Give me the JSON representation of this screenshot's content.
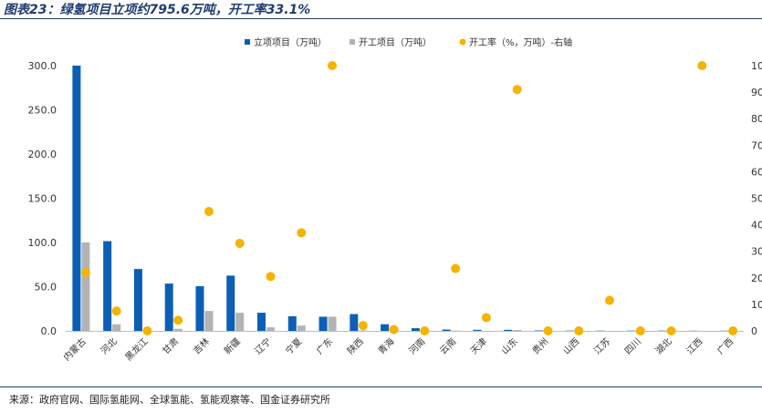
{
  "title": "图表23：绿氢项目立项约795.6万吨，开工率33.1%",
  "source": "来源：政府官网、国际氢能网、全球氢能、氢能观察等、国金证券研究所",
  "colors": {
    "approved": "#0b5fb5",
    "started": "#b3b3b3",
    "rate": "#f4b400"
  },
  "chart_data": {
    "type": "bar",
    "categories": [
      "内蒙古",
      "河北",
      "黑龙江",
      "甘肃",
      "吉林",
      "新疆",
      "辽宁",
      "宁夏",
      "广东",
      "陕西",
      "青海",
      "河南",
      "云南",
      "天津",
      "山东",
      "贵州",
      "山西",
      "江苏",
      "四川",
      "湖北",
      "江西",
      "广西"
    ],
    "series": [
      {
        "name": "立项项目（万吨）",
        "type": "bar",
        "axis": "left",
        "values": [
          300.0,
          101.5,
          70.0,
          53.5,
          50.5,
          62.5,
          20.5,
          16.5,
          16.0,
          19.0,
          7.5,
          3.0,
          1.5,
          1.2,
          1.2,
          0.5,
          0.3,
          0.3,
          0.3,
          0.3,
          0.2,
          0.2
        ]
      },
      {
        "name": "开工项目（万吨）",
        "type": "bar",
        "axis": "left",
        "values": [
          100.0,
          7.5,
          0.0,
          2.3,
          22.5,
          20.5,
          4.0,
          6.0,
          16.0,
          0.5,
          0.3,
          0.0,
          0.3,
          0.0,
          1.0,
          0.0,
          0.0,
          0.0,
          0.0,
          0.0,
          0.0,
          0.0
        ]
      },
      {
        "name": "开工率（%，万吨）-右轴",
        "type": "scatter",
        "axis": "right",
        "values": [
          22.0,
          7.5,
          0.0,
          4.0,
          45.0,
          33.0,
          20.5,
          37.0,
          100.0,
          2.0,
          0.5,
          0.0,
          23.5,
          5.0,
          91.0,
          0.0,
          0.0,
          11.5,
          0.0,
          0.0,
          100.0,
          0.0
        ]
      }
    ],
    "left_axis": {
      "ylim": [
        0,
        300
      ],
      "ticks": [
        "0.0",
        "50.0",
        "100.0",
        "150.0",
        "200.0",
        "250.0",
        "300.0"
      ]
    },
    "right_axis": {
      "ylim": [
        0,
        100
      ],
      "ticks": [
        "0",
        "10",
        "20",
        "30",
        "40",
        "50",
        "60",
        "70",
        "80",
        "90",
        "100"
      ]
    },
    "legend_position": "top-center",
    "grid": false
  }
}
